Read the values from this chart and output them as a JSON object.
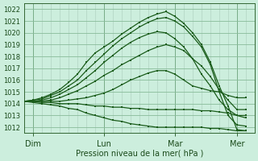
{
  "xlabel": "Pression niveau de la mer( hPa )",
  "bg_color": "#cceedd",
  "grid_color_major": "#88bb99",
  "grid_color_minor": "#aaccbb",
  "line_color": "#1a5c1a",
  "ylim": [
    1011.5,
    1022.5
  ],
  "xlim": [
    0,
    78
  ],
  "day_labels": [
    "Dim",
    "Lun",
    "Mar",
    "Mer"
  ],
  "day_positions": [
    3,
    27,
    51,
    72
  ],
  "yticks": [
    1012,
    1013,
    1014,
    1015,
    1016,
    1017,
    1018,
    1019,
    1020,
    1021,
    1022
  ],
  "lines": [
    {
      "x": [
        0,
        3,
        6,
        9,
        12,
        15,
        18,
        21,
        24,
        27,
        30,
        33,
        36,
        39,
        42,
        45,
        48,
        51,
        54,
        57,
        60,
        63,
        66,
        69,
        72,
        75
      ],
      "y": [
        1014.2,
        1014.3,
        1014.5,
        1014.8,
        1015.2,
        1015.8,
        1016.5,
        1017.5,
        1018.3,
        1018.8,
        1019.3,
        1019.9,
        1020.4,
        1020.9,
        1021.3,
        1021.6,
        1021.8,
        1021.4,
        1020.8,
        1020.0,
        1019.0,
        1017.5,
        1015.5,
        1013.8,
        1011.8,
        1011.7
      ]
    },
    {
      "x": [
        0,
        3,
        6,
        9,
        12,
        15,
        18,
        21,
        24,
        27,
        30,
        33,
        36,
        39,
        42,
        45,
        48,
        51,
        54,
        57,
        60,
        63,
        66,
        69,
        72,
        75
      ],
      "y": [
        1014.2,
        1014.3,
        1014.4,
        1014.7,
        1015.0,
        1015.5,
        1016.0,
        1016.8,
        1017.5,
        1018.2,
        1018.9,
        1019.5,
        1020.0,
        1020.5,
        1020.9,
        1021.2,
        1021.3,
        1021.0,
        1020.5,
        1019.7,
        1018.8,
        1017.3,
        1015.0,
        1013.0,
        1012.2,
        1012.1
      ]
    },
    {
      "x": [
        0,
        3,
        6,
        9,
        12,
        15,
        18,
        21,
        24,
        27,
        30,
        33,
        36,
        39,
        42,
        45,
        48,
        51,
        54,
        57,
        60,
        63,
        66,
        69,
        72,
        75
      ],
      "y": [
        1014.2,
        1014.2,
        1014.3,
        1014.5,
        1014.8,
        1015.2,
        1015.6,
        1016.2,
        1016.8,
        1017.5,
        1018.1,
        1018.7,
        1019.2,
        1019.6,
        1019.9,
        1020.1,
        1020.0,
        1019.5,
        1018.8,
        1017.8,
        1016.5,
        1015.5,
        1014.3,
        1013.5,
        1013.0,
        1012.8
      ]
    },
    {
      "x": [
        0,
        3,
        6,
        9,
        12,
        15,
        18,
        21,
        24,
        27,
        30,
        33,
        36,
        39,
        42,
        45,
        48,
        51,
        54,
        57,
        60,
        63,
        66,
        69,
        72,
        75
      ],
      "y": [
        1014.2,
        1014.2,
        1014.2,
        1014.3,
        1014.5,
        1014.8,
        1015.1,
        1015.5,
        1015.9,
        1016.4,
        1016.8,
        1017.3,
        1017.7,
        1018.1,
        1018.5,
        1018.8,
        1019.0,
        1018.8,
        1018.5,
        1017.8,
        1017.2,
        1016.3,
        1015.2,
        1014.3,
        1013.5,
        1013.5
      ]
    },
    {
      "x": [
        0,
        3,
        6,
        9,
        12,
        15,
        18,
        21,
        24,
        27,
        30,
        33,
        36,
        39,
        42,
        45,
        48,
        51,
        54,
        57,
        60,
        63,
        66,
        69,
        72,
        75
      ],
      "y": [
        1014.2,
        1014.2,
        1014.2,
        1014.2,
        1014.2,
        1014.3,
        1014.4,
        1014.5,
        1014.7,
        1014.9,
        1015.2,
        1015.6,
        1016.0,
        1016.3,
        1016.6,
        1016.8,
        1016.8,
        1016.5,
        1016.0,
        1015.5,
        1015.3,
        1015.1,
        1015.0,
        1014.7,
        1014.5,
        1014.5
      ]
    },
    {
      "x": [
        0,
        3,
        6,
        9,
        12,
        15,
        18,
        21,
        24,
        27,
        30,
        33,
        36,
        39,
        42,
        45,
        48,
        51,
        54,
        57,
        60,
        63,
        66,
        69,
        72,
        75
      ],
      "y": [
        1014.2,
        1014.2,
        1014.1,
        1014.1,
        1014.0,
        1014.0,
        1014.0,
        1013.9,
        1013.8,
        1013.8,
        1013.7,
        1013.7,
        1013.6,
        1013.6,
        1013.5,
        1013.5,
        1013.5,
        1013.5,
        1013.5,
        1013.5,
        1013.4,
        1013.4,
        1013.3,
        1013.2,
        1013.0,
        1013.0
      ]
    },
    {
      "x": [
        0,
        3,
        6,
        9,
        12,
        15,
        18,
        21,
        24,
        27,
        30,
        33,
        36,
        39,
        42,
        45,
        48,
        51,
        54,
        57,
        60,
        63,
        66,
        69,
        72,
        75
      ],
      "y": [
        1014.2,
        1014.1,
        1014.0,
        1013.9,
        1013.8,
        1013.6,
        1013.5,
        1013.2,
        1013.0,
        1012.8,
        1012.6,
        1012.5,
        1012.3,
        1012.2,
        1012.1,
        1012.0,
        1012.0,
        1012.0,
        1012.0,
        1012.0,
        1012.0,
        1011.9,
        1011.9,
        1011.8,
        1011.7,
        1011.7
      ]
    }
  ]
}
